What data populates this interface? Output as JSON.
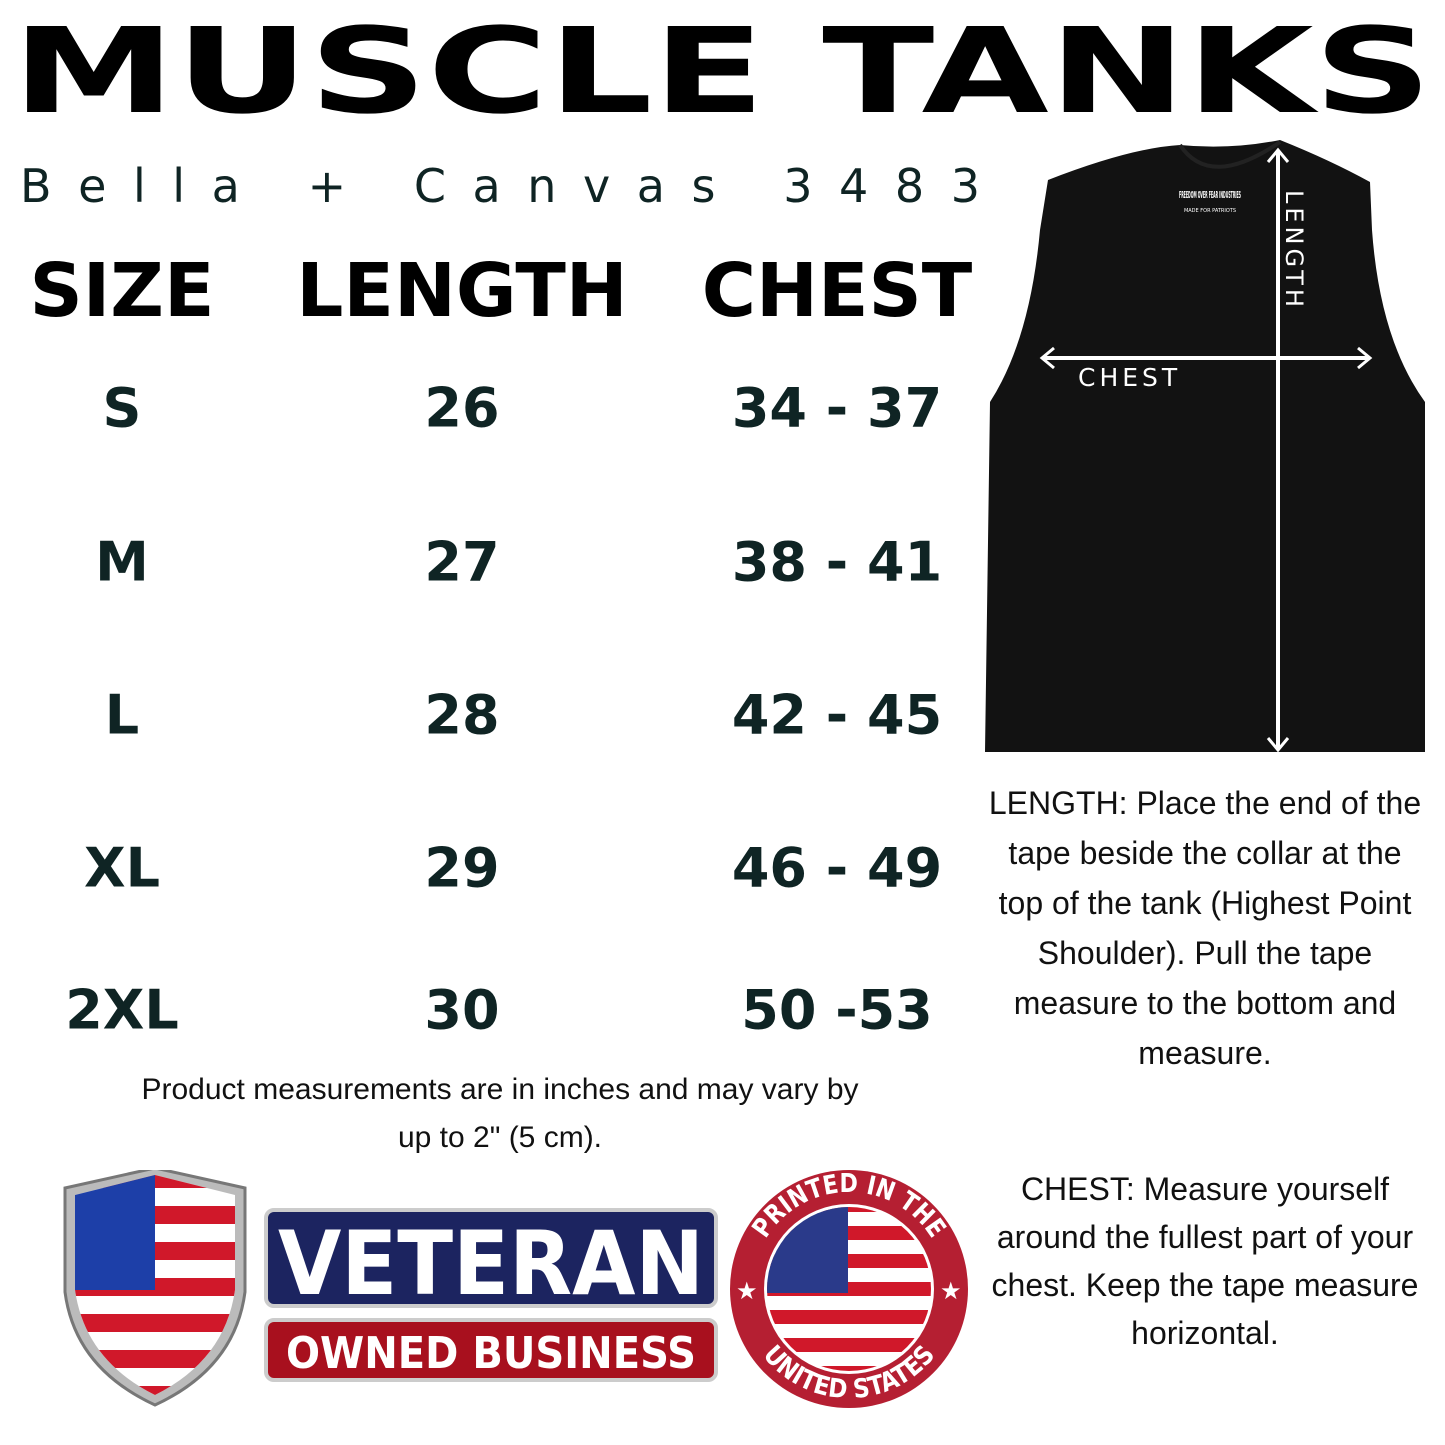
{
  "title": "MUSCLE TANKS",
  "subtitle": "Bella + Canvas 3483",
  "table": {
    "headers": [
      "SIZE",
      "LENGTH",
      "CHEST"
    ],
    "rows": [
      {
        "size": "S",
        "length": "26",
        "chest": "34 - 37"
      },
      {
        "size": "M",
        "length": "27",
        "chest": "38 - 41"
      },
      {
        "size": "L",
        "length": "28",
        "chest": "42 - 45"
      },
      {
        "size": "XL",
        "length": "29",
        "chest": "46 - 49"
      },
      {
        "size": "2XL",
        "length": "30",
        "chest": "50 -53"
      }
    ]
  },
  "note": "Product measurements are in inches and may vary by up to 2\" (5 cm).",
  "diagram": {
    "length_label": "LENGTH",
    "chest_label": "CHEST",
    "tag_brand": "FREEDOM OVER FEAR INDUSTRIES",
    "tag_tagline": "MADE FOR PATRIOTS",
    "tank_color": "#111111"
  },
  "instructions": {
    "length": "LENGTH: Place the end of the tape beside the collar at the top of the tank (Highest Point Shoulder). Pull the tape measure to the bottom and measure.",
    "chest": "CHEST: Measure yourself around the fullest part of your chest. Keep the tape measure horizontal."
  },
  "badges": {
    "veteran_top": "VETERAN",
    "veteran_bottom": "OWNED BUSINESS",
    "seal_top": "PRINTED IN THE",
    "seal_bottom": "UNITED STATES",
    "navy": "#1c2460",
    "red": "#a8101e"
  }
}
